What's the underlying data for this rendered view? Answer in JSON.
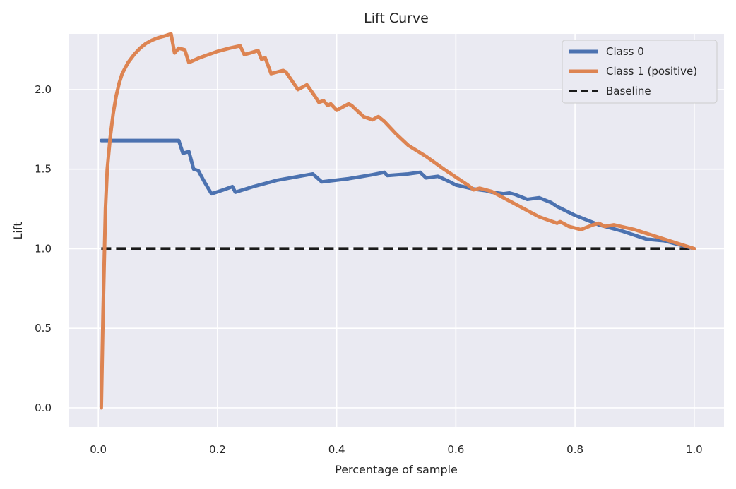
{
  "chart_data": {
    "type": "line",
    "title": "Lift Curve",
    "xlabel": "Percentage of sample",
    "ylabel": "Lift",
    "xlim": [
      -0.05,
      1.05
    ],
    "ylim": [
      -0.12,
      2.35
    ],
    "xticks": [
      0.0,
      0.2,
      0.4,
      0.6,
      0.8,
      1.0
    ],
    "xtick_labels": [
      "0.0",
      "0.2",
      "0.4",
      "0.6",
      "0.8",
      "1.0"
    ],
    "yticks": [
      0.0,
      0.5,
      1.0,
      1.5,
      2.0
    ],
    "ytick_labels": [
      "0.0",
      "0.5",
      "1.0",
      "1.5",
      "2.0"
    ],
    "grid": true,
    "legend_position": "top-right",
    "background": "#eaeaf2",
    "series": [
      {
        "name": "Class 0",
        "color": "#4c72b0",
        "dash": "solid",
        "x": [
          0.005,
          0.02,
          0.05,
          0.08,
          0.1,
          0.12,
          0.135,
          0.142,
          0.152,
          0.16,
          0.168,
          0.178,
          0.19,
          0.21,
          0.225,
          0.23,
          0.26,
          0.3,
          0.33,
          0.36,
          0.375,
          0.42,
          0.46,
          0.48,
          0.485,
          0.52,
          0.54,
          0.55,
          0.57,
          0.59,
          0.6,
          0.63,
          0.65,
          0.66,
          0.68,
          0.69,
          0.7,
          0.72,
          0.74,
          0.76,
          0.77,
          0.8,
          0.84,
          0.88,
          0.92,
          0.95,
          1.0
        ],
        "y": [
          1.68,
          1.68,
          1.68,
          1.68,
          1.68,
          1.68,
          1.68,
          1.6,
          1.61,
          1.5,
          1.49,
          1.42,
          1.345,
          1.37,
          1.39,
          1.355,
          1.39,
          1.43,
          1.45,
          1.47,
          1.42,
          1.44,
          1.465,
          1.48,
          1.46,
          1.47,
          1.48,
          1.445,
          1.455,
          1.42,
          1.4,
          1.375,
          1.365,
          1.355,
          1.345,
          1.35,
          1.34,
          1.31,
          1.32,
          1.29,
          1.265,
          1.21,
          1.15,
          1.11,
          1.06,
          1.05,
          1.0
        ]
      },
      {
        "name": "Class 1 (positive)",
        "color": "#dd8452",
        "dash": "solid",
        "x": [
          0.005,
          0.008,
          0.012,
          0.015,
          0.02,
          0.025,
          0.03,
          0.035,
          0.04,
          0.05,
          0.06,
          0.07,
          0.08,
          0.09,
          0.1,
          0.11,
          0.122,
          0.128,
          0.135,
          0.145,
          0.152,
          0.17,
          0.2,
          0.22,
          0.238,
          0.245,
          0.255,
          0.268,
          0.274,
          0.28,
          0.29,
          0.31,
          0.315,
          0.335,
          0.35,
          0.365,
          0.37,
          0.378,
          0.385,
          0.39,
          0.4,
          0.42,
          0.425,
          0.445,
          0.46,
          0.47,
          0.48,
          0.5,
          0.52,
          0.55,
          0.58,
          0.6,
          0.62,
          0.63,
          0.64,
          0.66,
          0.7,
          0.74,
          0.77,
          0.775,
          0.79,
          0.81,
          0.83,
          0.84,
          0.85,
          0.865,
          0.9,
          0.95,
          1.0
        ],
        "y": [
          0.0,
          0.6,
          1.25,
          1.5,
          1.7,
          1.85,
          1.96,
          2.04,
          2.1,
          2.17,
          2.22,
          2.26,
          2.29,
          2.31,
          2.325,
          2.335,
          2.35,
          2.23,
          2.26,
          2.25,
          2.17,
          2.2,
          2.24,
          2.26,
          2.275,
          2.22,
          2.23,
          2.245,
          2.19,
          2.2,
          2.1,
          2.12,
          2.11,
          2.0,
          2.03,
          1.95,
          1.92,
          1.93,
          1.9,
          1.91,
          1.87,
          1.91,
          1.9,
          1.83,
          1.81,
          1.83,
          1.8,
          1.72,
          1.65,
          1.58,
          1.5,
          1.45,
          1.4,
          1.37,
          1.38,
          1.36,
          1.28,
          1.2,
          1.16,
          1.17,
          1.14,
          1.12,
          1.15,
          1.16,
          1.14,
          1.15,
          1.12,
          1.06,
          1.0
        ]
      },
      {
        "name": "Baseline",
        "color": "#1a1a1a",
        "dash": "dashed",
        "x": [
          0.005,
          1.0
        ],
        "y": [
          1.0,
          1.0
        ]
      }
    ]
  }
}
